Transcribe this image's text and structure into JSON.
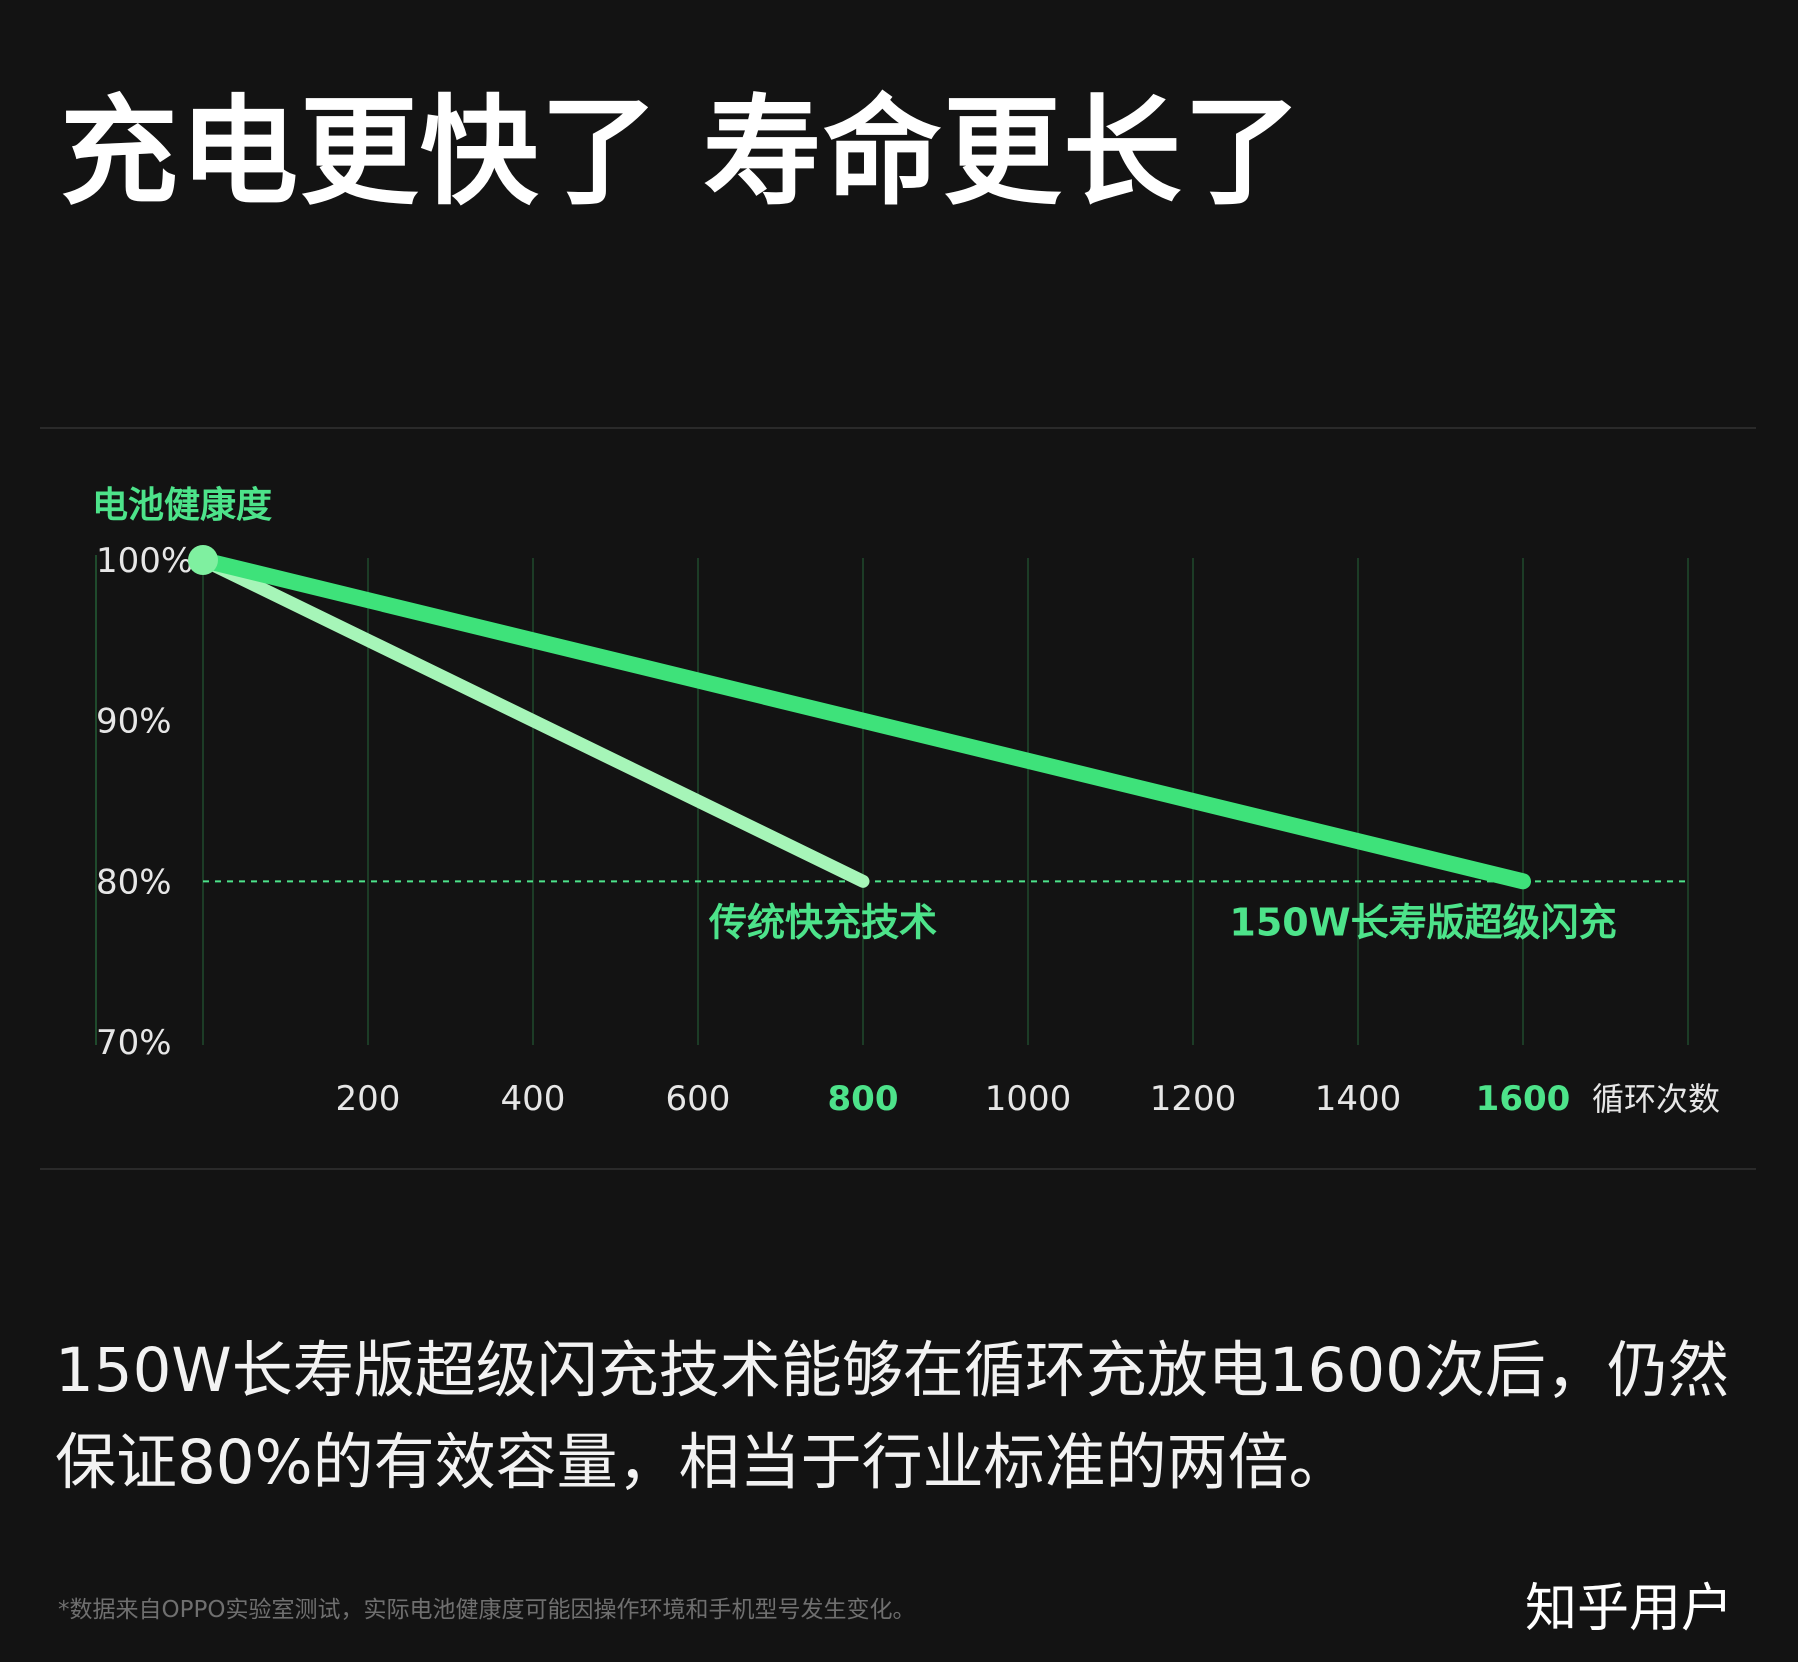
{
  "headline": "充电更快了 寿命更长了",
  "chart_data": {
    "type": "line",
    "ylabel": "电池健康度",
    "xlabel": "循环次数",
    "xlim": [
      0,
      1800
    ],
    "ylim": [
      70,
      100
    ],
    "x_ticks": [
      "200",
      "400",
      "600",
      "800",
      "1000",
      "1200",
      "1400",
      "1600"
    ],
    "x_tick_values": [
      200,
      400,
      600,
      800,
      1000,
      1200,
      1400,
      1600
    ],
    "highlighted_x_ticks": [
      "800",
      "1600"
    ],
    "y_ticks": [
      "100%",
      "90%",
      "80%",
      "70%"
    ],
    "y_tick_values": [
      100,
      90,
      80,
      70
    ],
    "reference_line": {
      "y": 80,
      "style": "dashed"
    },
    "series": [
      {
        "name": "传统快充技术",
        "x": [
          0,
          800
        ],
        "y": [
          100,
          80
        ],
        "color": "#a6f5b8"
      },
      {
        "name": "150W长寿版超级闪充",
        "x": [
          0,
          1600
        ],
        "y": [
          100,
          80
        ],
        "color": "#3ee27a"
      }
    ],
    "start_marker": {
      "x": 0,
      "y": 100,
      "color": "#7ff0a0"
    },
    "colors": {
      "accent": "#4de38a",
      "grid": "#1f4a2c",
      "text": "#e6e6e6"
    }
  },
  "caption": "150W长寿版超级闪充技术能够在循环充放电1600次后，仍然保证80%的有效容量，相当于行业标准的两倍。",
  "footnote": "*数据来自OPPO实验室测试，实际电池健康度可能因操作环境和手机型号发生变化。",
  "watermark": "知乎用户"
}
